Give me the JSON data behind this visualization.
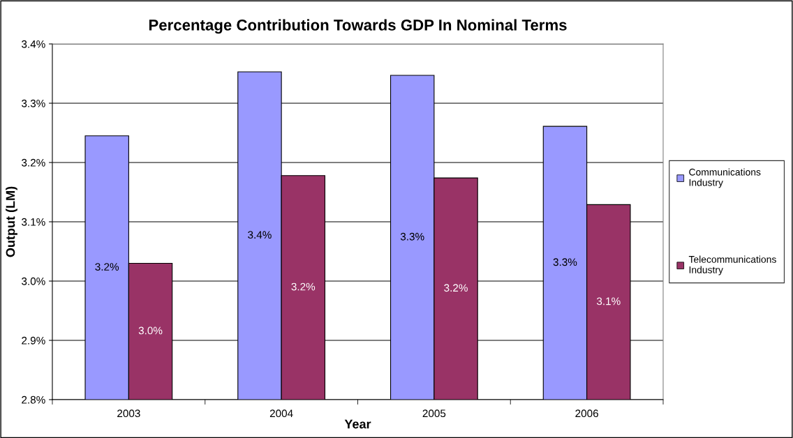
{
  "chart_data": {
    "type": "bar",
    "title": "Percentage Contribution Towards GDP In Nominal Terms",
    "xlabel": "Year",
    "ylabel": "Output (LM)",
    "categories": [
      "2003",
      "2004",
      "2005",
      "2006"
    ],
    "series": [
      {
        "name": "Communications Industry",
        "color": "#9999ff",
        "values": [
          3.245,
          3.353,
          3.347,
          3.261
        ],
        "value_labels": [
          "3.2%",
          "3.4%",
          "3.3%",
          "3.3%"
        ]
      },
      {
        "name": "Telecommunications Industry",
        "color": "#993366",
        "values": [
          3.03,
          3.178,
          3.174,
          3.129
        ],
        "value_labels": [
          "3.0%",
          "3.2%",
          "3.2%",
          "3.1%"
        ]
      }
    ],
    "ylim": [
      2.8,
      3.4
    ],
    "yticks": [
      {
        "value": 2.8,
        "label": "2.8%"
      },
      {
        "value": 2.9,
        "label": "2.9%"
      },
      {
        "value": 3.0,
        "label": "3.0%"
      },
      {
        "value": 3.1,
        "label": "3.1%"
      },
      {
        "value": 3.2,
        "label": "3.2%"
      },
      {
        "value": 3.3,
        "label": "3.3%"
      },
      {
        "value": 3.4,
        "label": "3.4%"
      }
    ],
    "grid": "y",
    "legend": "right"
  }
}
